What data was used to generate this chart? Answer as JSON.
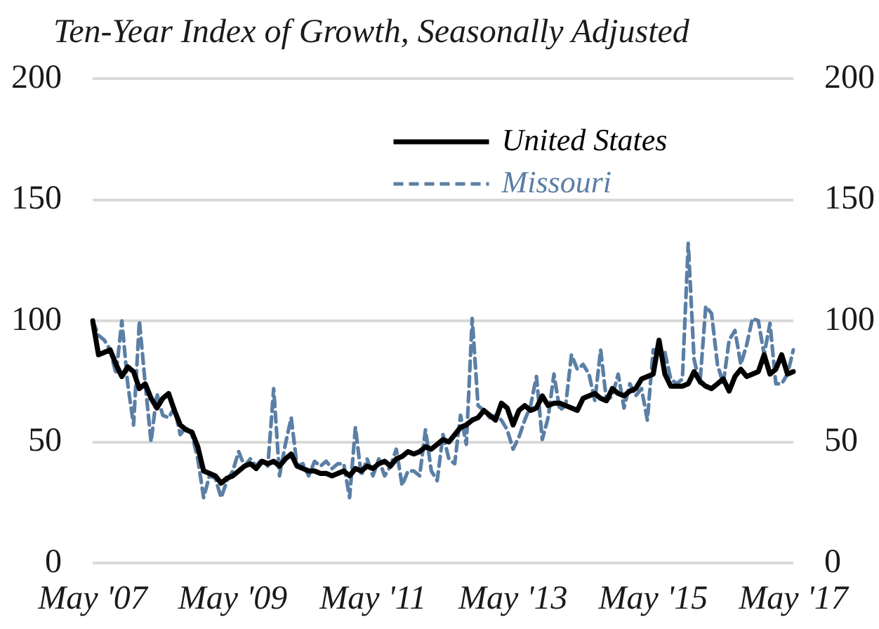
{
  "chart_data": {
    "type": "line",
    "title": "Ten-Year Index of Growth, Seasonally Adjusted",
    "categories": [
      "May '07",
      null,
      null,
      null,
      null,
      null,
      null,
      null,
      null,
      null,
      null,
      null,
      null,
      null,
      null,
      null,
      null,
      null,
      null,
      null,
      null,
      null,
      null,
      null,
      "May '09",
      null,
      null,
      null,
      null,
      null,
      null,
      null,
      null,
      null,
      null,
      null,
      null,
      null,
      null,
      null,
      null,
      null,
      null,
      null,
      null,
      null,
      null,
      null,
      "May '11",
      null,
      null,
      null,
      null,
      null,
      null,
      null,
      null,
      null,
      null,
      null,
      null,
      null,
      null,
      null,
      null,
      null,
      null,
      null,
      null,
      null,
      null,
      null,
      "May '13",
      null,
      null,
      null,
      null,
      null,
      null,
      null,
      null,
      null,
      null,
      null,
      null,
      null,
      null,
      null,
      null,
      null,
      null,
      null,
      null,
      null,
      null,
      null,
      "May '15",
      null,
      null,
      null,
      null,
      null,
      null,
      null,
      null,
      null,
      null,
      null,
      null,
      null,
      null,
      null,
      null,
      null,
      null,
      null,
      null,
      null,
      null,
      null,
      "May '17"
    ],
    "series": [
      {
        "name": "United States",
        "color": "#000000",
        "line_style": "solid",
        "values": [
          100,
          86,
          87,
          88,
          82,
          77,
          81,
          79,
          72,
          74,
          68,
          64,
          68,
          70,
          63,
          57,
          55,
          54,
          48,
          38,
          37,
          36,
          33,
          35,
          36,
          38,
          40,
          41,
          39,
          42,
          41,
          42,
          40,
          43,
          45,
          40,
          39,
          38,
          38,
          37,
          37,
          36,
          37,
          38,
          36,
          39,
          38,
          40,
          39,
          41,
          42,
          40,
          43,
          44,
          46,
          45,
          46,
          48,
          47,
          49,
          51,
          50,
          53,
          56,
          57,
          59,
          60,
          63,
          61,
          59,
          66,
          64,
          57,
          63,
          65,
          63,
          64,
          69,
          65,
          66,
          66,
          65,
          64,
          63,
          68,
          69,
          70,
          68,
          67,
          72,
          70,
          69,
          71,
          72,
          76,
          77,
          78,
          92,
          78,
          73,
          73,
          73,
          74,
          79,
          75,
          73,
          72,
          74,
          76,
          71,
          77,
          80,
          77,
          78,
          79,
          86,
          78,
          80,
          86,
          78,
          79
        ]
      },
      {
        "name": "Missouri",
        "color": "#5b7fa5",
        "line_style": "dashed",
        "values": [
          100,
          94,
          92,
          88,
          78,
          100,
          74,
          57,
          100,
          74,
          50,
          70,
          61,
          60,
          64,
          53,
          56,
          53,
          43,
          27,
          36,
          35,
          27,
          34,
          38,
          46,
          40,
          43,
          40,
          43,
          40,
          72,
          36,
          49,
          60,
          40,
          41,
          36,
          42,
          40,
          42,
          39,
          41,
          41,
          27,
          56,
          36,
          43,
          36,
          43,
          36,
          40,
          47,
          32,
          38,
          38,
          36,
          55,
          38,
          34,
          53,
          43,
          41,
          61,
          49,
          101,
          65,
          63,
          60,
          61,
          59,
          55,
          47,
          52,
          59,
          65,
          77,
          51,
          60,
          78,
          63,
          65,
          86,
          80,
          82,
          78,
          67,
          88,
          67,
          69,
          78,
          64,
          74,
          69,
          72,
          59,
          88,
          88,
          87,
          76,
          74,
          76,
          132,
          84,
          74,
          106,
          103,
          82,
          74,
          92,
          96,
          82,
          90,
          101,
          100,
          86,
          99,
          74,
          74,
          78,
          88
        ]
      }
    ],
    "ylim": [
      0,
      200
    ],
    "yticks": [
      0,
      50,
      100,
      150,
      200
    ],
    "y2lim": [
      0,
      200
    ],
    "y2ticks": [
      0,
      50,
      100,
      150,
      200
    ],
    "grid": "y",
    "legend": "top right",
    "marker": "none"
  }
}
